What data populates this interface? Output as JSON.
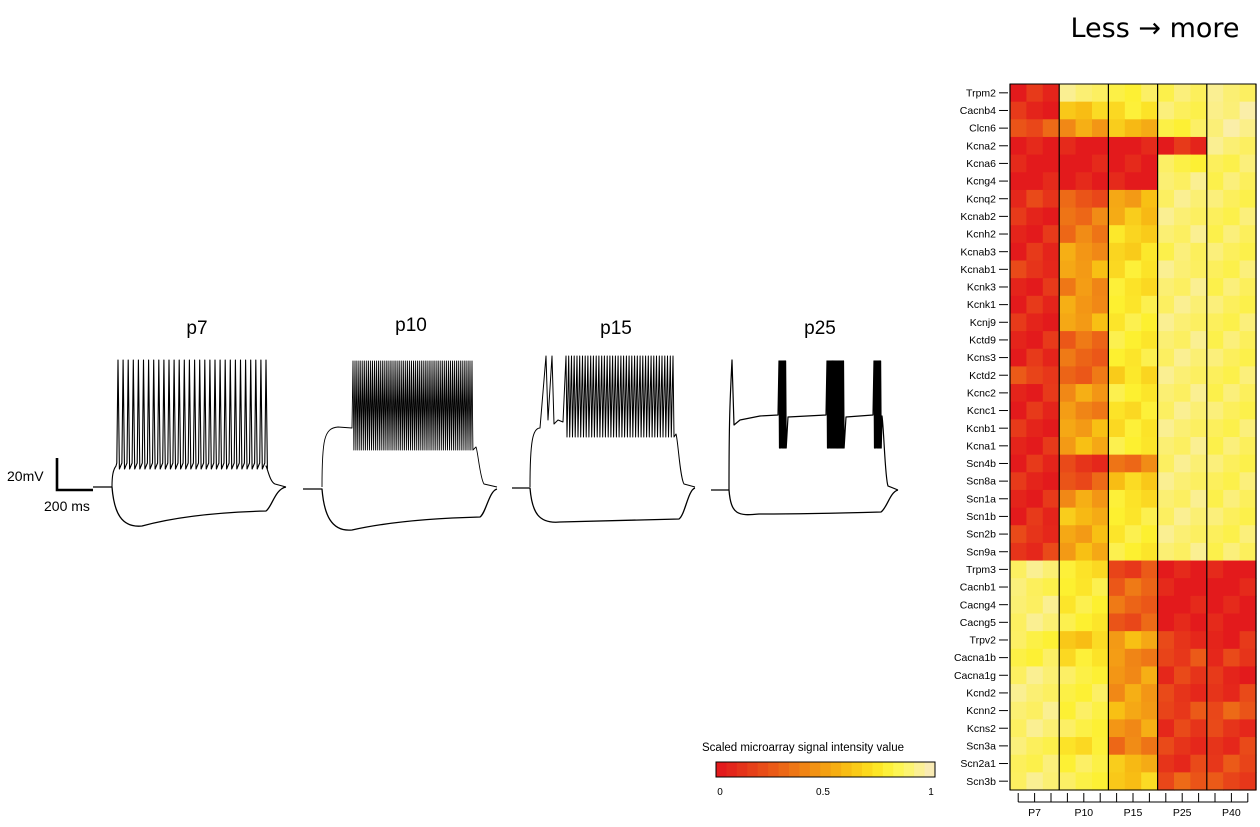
{
  "figure": {
    "header": "Less → more",
    "traces": [
      {
        "label": "p7",
        "pattern": "regular",
        "spike_count": 30
      },
      {
        "label": "p10",
        "pattern": "dense",
        "spike_count": 62
      },
      {
        "label": "p15",
        "pattern": "dense-with-onset",
        "spike_count": 40
      },
      {
        "label": "p25",
        "pattern": "bursts",
        "burst_count": 4
      }
    ],
    "scale_bar": {
      "voltage": "20mV",
      "time": "200 ms"
    },
    "colorbar": {
      "title": "Scaled microarray signal intensity value",
      "ticks": [
        "0",
        "0.5",
        "1"
      ],
      "colors": [
        "#e31a1c",
        "#e3261b",
        "#e4331a",
        "#e64019",
        "#e84d18",
        "#ea5a17",
        "#ec6816",
        "#ee7615",
        "#f08414",
        "#f29213",
        "#f4a012",
        "#f6ae12",
        "#f8bd14",
        "#facb18",
        "#fcd91d",
        "#fde626",
        "#fdf03a",
        "#fdf554",
        "#fcf472",
        "#fbf095",
        "#f9ebb4"
      ]
    }
  },
  "chart_data": {
    "type": "heatmap",
    "title": "Less → more",
    "legend_title": "Scaled microarray signal intensity value",
    "scale_range": [
      0,
      1
    ],
    "scale_ticks": [
      "0",
      "0.5",
      "1"
    ],
    "groups": [
      "P7",
      "P10",
      "P15",
      "P25",
      "P40"
    ],
    "replicates_per_group": 3,
    "genes": [
      "Trpm2",
      "Cacnb4",
      "Clcn6",
      "Kcna2",
      "Kcna6",
      "Kcng4",
      "Kcnq2",
      "Kcnab2",
      "Kcnh2",
      "Kcnab3",
      "Kcnab1",
      "Kcnk3",
      "Kcnk1",
      "Kcnj9",
      "Kctd9",
      "Kcns3",
      "Kctd2",
      "Kcnc2",
      "Kcnc1",
      "Kcnb1",
      "Kcna1",
      "Scn4b",
      "Scn8a",
      "Scn1a",
      "Scn1b",
      "Scn2b",
      "Scn9a",
      "Trpm3",
      "Cacnb1",
      "Cacng4",
      "Cacng5",
      "Trpv2",
      "Cacna1b",
      "Cacna1g",
      "Kcnd2",
      "Kcnn2",
      "Kcns2",
      "Scn3a",
      "Scn2a1",
      "Scn3b"
    ],
    "group_values": [
      [
        0.05,
        0.85,
        0.75,
        0.8,
        0.85
      ],
      [
        0.05,
        0.55,
        0.65,
        0.8,
        0.9
      ],
      [
        0.2,
        0.4,
        0.5,
        0.75,
        0.9
      ],
      [
        0.0,
        0.0,
        0.0,
        0.05,
        0.85
      ],
      [
        0.0,
        0.0,
        0.0,
        0.75,
        0.8
      ],
      [
        0.0,
        0.0,
        0.0,
        0.85,
        0.8
      ],
      [
        0.1,
        0.2,
        0.45,
        0.85,
        0.8
      ],
      [
        0.05,
        0.3,
        0.5,
        0.85,
        0.8
      ],
      [
        0.05,
        0.3,
        0.6,
        0.85,
        0.8
      ],
      [
        0.05,
        0.4,
        0.6,
        0.8,
        0.8
      ],
      [
        0.1,
        0.45,
        0.65,
        0.85,
        0.8
      ],
      [
        0.05,
        0.35,
        0.65,
        0.85,
        0.8
      ],
      [
        0.05,
        0.4,
        0.7,
        0.85,
        0.8
      ],
      [
        0.05,
        0.45,
        0.7,
        0.85,
        0.8
      ],
      [
        0.05,
        0.25,
        0.7,
        0.85,
        0.8
      ],
      [
        0.05,
        0.25,
        0.7,
        0.85,
        0.8
      ],
      [
        0.15,
        0.25,
        0.6,
        0.85,
        0.8
      ],
      [
        0.05,
        0.4,
        0.7,
        0.85,
        0.8
      ],
      [
        0.05,
        0.35,
        0.65,
        0.85,
        0.8
      ],
      [
        0.05,
        0.45,
        0.65,
        0.85,
        0.8
      ],
      [
        0.05,
        0.45,
        0.7,
        0.85,
        0.8
      ],
      [
        0.05,
        0.1,
        0.3,
        0.85,
        0.8
      ],
      [
        0.05,
        0.2,
        0.55,
        0.85,
        0.8
      ],
      [
        0.05,
        0.4,
        0.65,
        0.85,
        0.8
      ],
      [
        0.05,
        0.5,
        0.7,
        0.85,
        0.8
      ],
      [
        0.1,
        0.45,
        0.7,
        0.85,
        0.8
      ],
      [
        0.1,
        0.45,
        0.7,
        0.85,
        0.8
      ],
      [
        0.85,
        0.65,
        0.15,
        0.0,
        0.0
      ],
      [
        0.8,
        0.7,
        0.25,
        0.0,
        0.0
      ],
      [
        0.85,
        0.7,
        0.25,
        0.0,
        0.0
      ],
      [
        0.85,
        0.7,
        0.2,
        0.0,
        0.0
      ],
      [
        0.75,
        0.55,
        0.45,
        0.1,
        0.05
      ],
      [
        0.75,
        0.65,
        0.35,
        0.15,
        0.1
      ],
      [
        0.85,
        0.75,
        0.4,
        0.1,
        0.05
      ],
      [
        0.85,
        0.75,
        0.4,
        0.1,
        0.1
      ],
      [
        0.85,
        0.75,
        0.45,
        0.15,
        0.2
      ],
      [
        0.85,
        0.75,
        0.4,
        0.1,
        0.1
      ],
      [
        0.8,
        0.65,
        0.3,
        0.1,
        0.1
      ],
      [
        0.8,
        0.75,
        0.5,
        0.1,
        0.15
      ],
      [
        0.85,
        0.75,
        0.55,
        0.2,
        0.15
      ]
    ]
  }
}
